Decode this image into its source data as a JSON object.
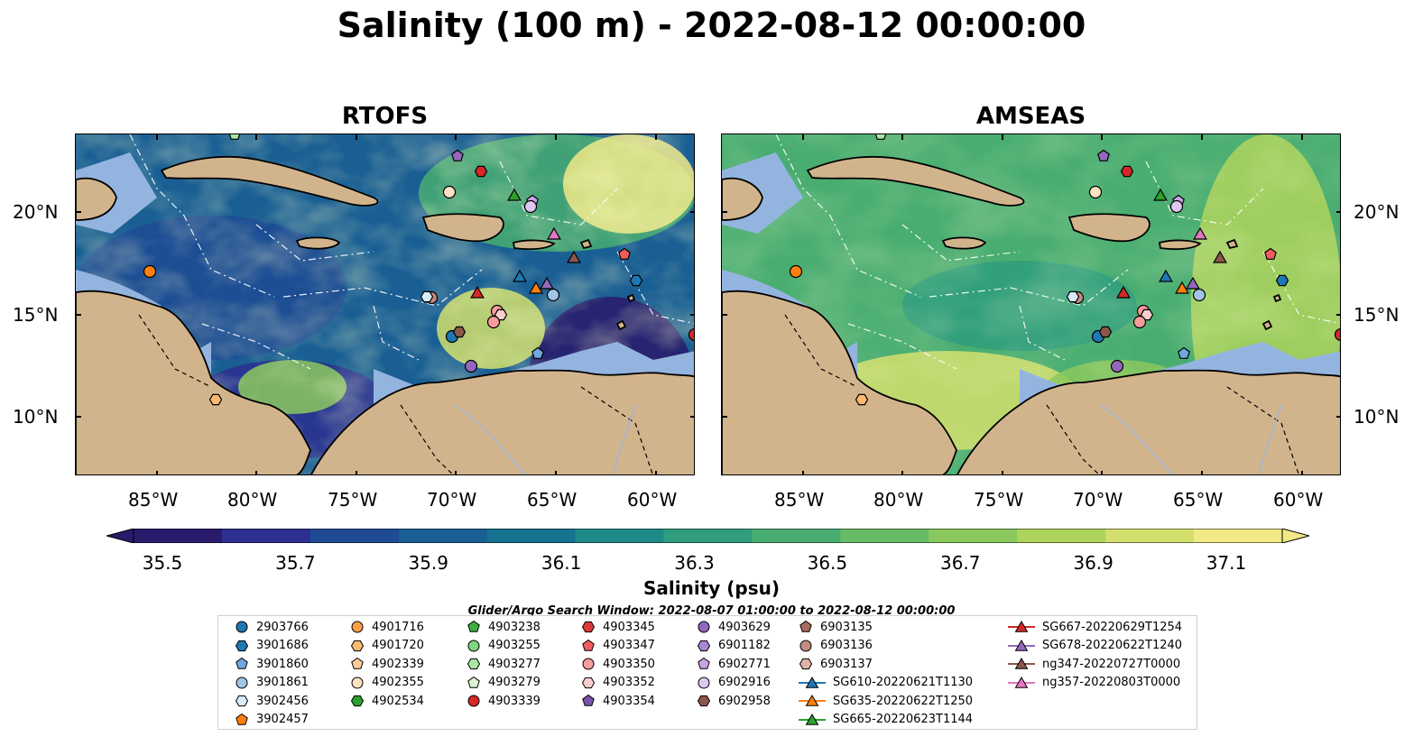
{
  "title": "Salinity (100 m) - 2022-08-12 00:00:00",
  "panels": [
    {
      "title": "RTOFS"
    },
    {
      "title": "AMSEAS"
    }
  ],
  "lat_ticks": [
    "20°N",
    "15°N",
    "10°N"
  ],
  "lon_ticks": [
    "85°W",
    "80°W",
    "75°W",
    "70°W",
    "65°W",
    "60°W"
  ],
  "colorbar": {
    "label": "Salinity (psu)",
    "ticks": [
      "35.5",
      "35.7",
      "35.9",
      "36.1",
      "36.3",
      "36.5",
      "36.7",
      "36.9",
      "37.1"
    ],
    "colors": [
      "#2a1a6b",
      "#2c2f8f",
      "#1f4b94",
      "#195f93",
      "#17728f",
      "#1e8a88",
      "#2f9d7e",
      "#49ad71",
      "#67bb66",
      "#8ac85e",
      "#aed45d",
      "#d2df6c",
      "#f0e986"
    ]
  },
  "legend_note": "Glider/Argo Search Window: 2022-08-07 01:00:00 to 2022-08-12 00:00:00",
  "legend": [
    {
      "label": "2903766",
      "shape": "circle",
      "color": "#1f77b4"
    },
    {
      "label": "3901686",
      "shape": "hexagon",
      "color": "#1f77b4"
    },
    {
      "label": "3901860",
      "shape": "pentagon",
      "color": "#6fa8dc"
    },
    {
      "label": "3901861",
      "shape": "circle",
      "color": "#9fc5e8"
    },
    {
      "label": "3902456",
      "shape": "hexagon",
      "color": "#d6ecfa"
    },
    {
      "label": "3902457",
      "shape": "pentagon",
      "color": "#ff7f0e"
    },
    {
      "label": "4901716",
      "shape": "circle",
      "color": "#ff9f45"
    },
    {
      "label": "4901720",
      "shape": "hexagon",
      "color": "#ffb870"
    },
    {
      "label": "4902339",
      "shape": "pentagon",
      "color": "#ffcc99"
    },
    {
      "label": "4902355",
      "shape": "circle",
      "color": "#ffe2c2"
    },
    {
      "label": "4902534",
      "shape": "hexagon",
      "color": "#2ca02c"
    },
    {
      "label": "4903238",
      "shape": "pentagon",
      "color": "#3cb043"
    },
    {
      "label": "4903255",
      "shape": "circle",
      "color": "#7fd67f"
    },
    {
      "label": "4903277",
      "shape": "hexagon",
      "color": "#a8e6a1"
    },
    {
      "label": "4903279",
      "shape": "pentagon",
      "color": "#d8f5d0"
    },
    {
      "label": "4903339",
      "shape": "circle",
      "color": "#d62728"
    },
    {
      "label": "4903345",
      "shape": "hexagon",
      "color": "#e0393b"
    },
    {
      "label": "4903347",
      "shape": "pentagon",
      "color": "#f05c5d"
    },
    {
      "label": "4903350",
      "shape": "circle",
      "color": "#f79b9c"
    },
    {
      "label": "4903352",
      "shape": "hexagon",
      "color": "#fbcdcd"
    },
    {
      "label": "4903354",
      "shape": "pentagon",
      "color": "#7b52ab"
    },
    {
      "label": "4903629",
      "shape": "circle",
      "color": "#9467bd"
    },
    {
      "label": "6901182",
      "shape": "hexagon",
      "color": "#ab86d1"
    },
    {
      "label": "6902771",
      "shape": "pentagon",
      "color": "#c3a6e3"
    },
    {
      "label": "6902916",
      "shape": "circle",
      "color": "#dcc8f2"
    },
    {
      "label": "6902958",
      "shape": "hexagon",
      "color": "#8c564b"
    },
    {
      "label": "6903135",
      "shape": "pentagon",
      "color": "#a86b5f"
    },
    {
      "label": "6903136",
      "shape": "circle",
      "color": "#c48b7e"
    },
    {
      "label": "6903137",
      "shape": "hexagon",
      "color": "#e0b3a8"
    },
    {
      "label": "SG610-20220621T1130",
      "shape": "triangle-line",
      "color": "#1f77b4"
    },
    {
      "label": "SG635-20220622T1250",
      "shape": "triangle-line",
      "color": "#ff7f0e"
    },
    {
      "label": "SG665-20220623T1144",
      "shape": "triangle-line",
      "color": "#2ca02c"
    },
    {
      "label": "SG667-20220629T1254",
      "shape": "triangle-line",
      "color": "#d62728"
    },
    {
      "label": "SG678-20220622T1240",
      "shape": "triangle-line",
      "color": "#9467bd"
    },
    {
      "label": "ng347-20220727T0000",
      "shape": "triangle-line",
      "color": "#8c564b"
    },
    {
      "label": "ng357-20220803T0000",
      "shape": "triangle-line",
      "color": "#e377c2"
    }
  ],
  "map_colors": {
    "land": "#d2b48c",
    "shallow_ocean": "#94b4e0"
  }
}
